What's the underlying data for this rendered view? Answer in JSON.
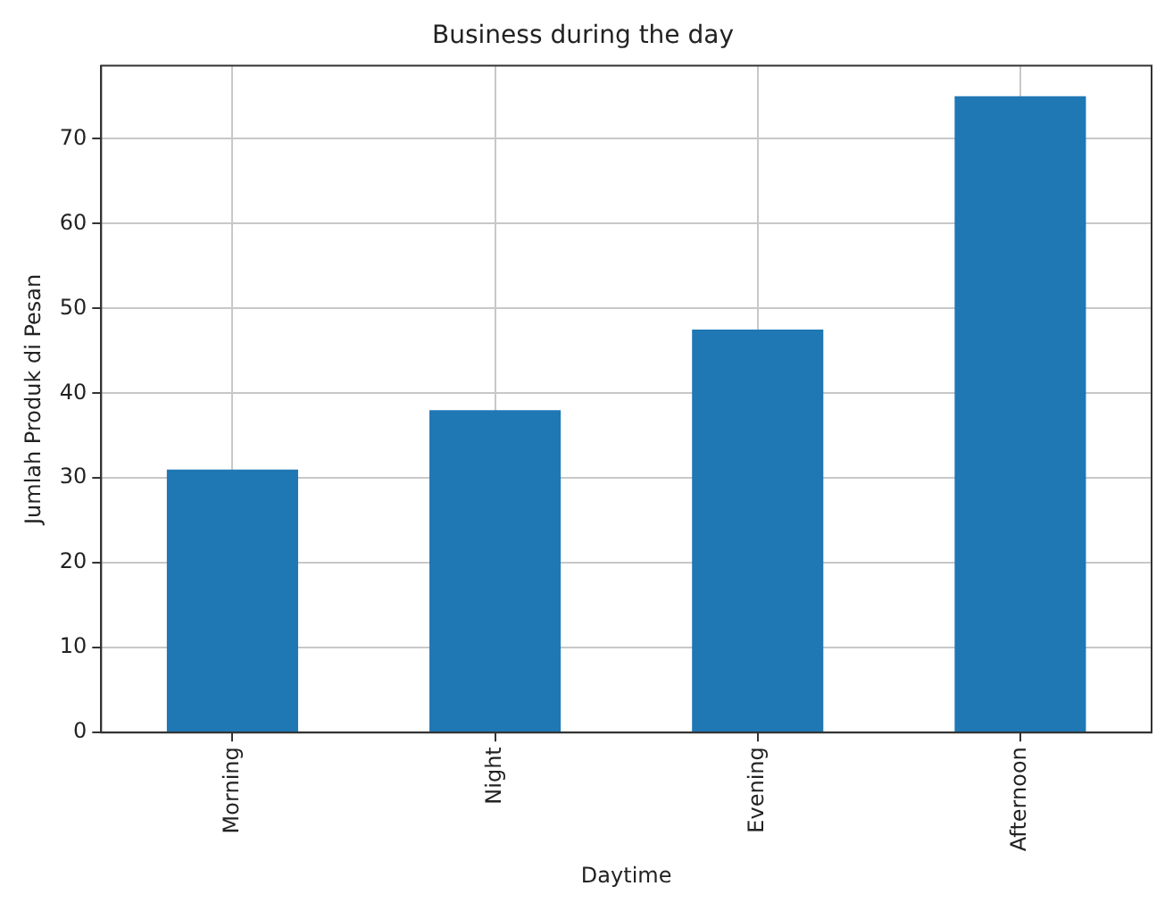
{
  "chart_data": {
    "type": "bar",
    "title": "Business during the day",
    "xlabel": "Daytime",
    "ylabel": "Jumlah Produk di Pesan",
    "categories": [
      "Morning",
      "Night",
      "Evening",
      "Afternoon"
    ],
    "values": [
      31,
      38,
      47.5,
      75
    ],
    "color": "#1f77b4",
    "ylim": [
      0,
      78.6
    ],
    "yticks": [
      0,
      10,
      20,
      30,
      40,
      50,
      60,
      70
    ],
    "grid": true,
    "legend": false
  }
}
